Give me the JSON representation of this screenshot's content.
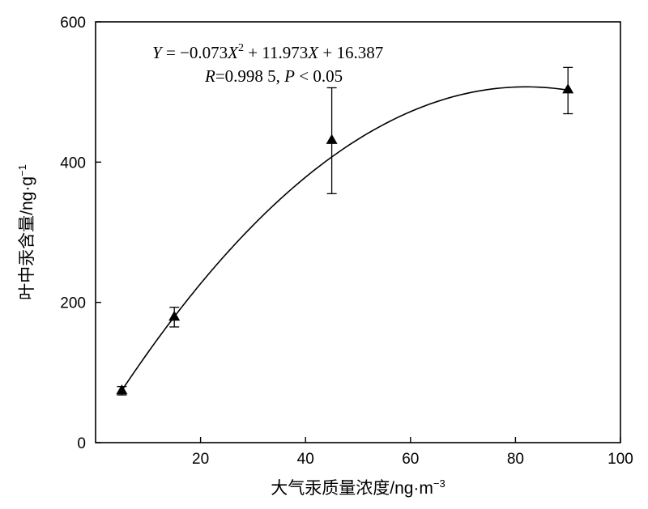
{
  "chart_data": {
    "type": "scatter",
    "xlabel": "大气汞质量浓度/ng·m",
    "xlabel_sup": "−3",
    "ylabel": "叶中汞含量/ng·g",
    "ylabel_sup": "−1",
    "xlim": [
      0,
      100
    ],
    "ylim": [
      0,
      600
    ],
    "xticks": [
      "20",
      "40",
      "60",
      "80",
      "100"
    ],
    "yticks": [
      "0",
      "200",
      "400",
      "600"
    ],
    "grid": false,
    "legend": "none",
    "points": [
      {
        "x": 5,
        "y": 75,
        "err_low": 68,
        "err_high": 80
      },
      {
        "x": 15,
        "y": 180,
        "err_low": 165,
        "err_high": 193
      },
      {
        "x": 45,
        "y": 432,
        "err_low": 355,
        "err_high": 506
      },
      {
        "x": 90,
        "y": 504,
        "err_low": 469,
        "err_high": 535
      }
    ],
    "fit": {
      "a": -0.073,
      "b": 11.973,
      "c": 16.387,
      "x_from": 5,
      "x_to": 90
    },
    "annotation": {
      "eq_Y": "Y",
      "eq_mid": " = −0.073",
      "eq_X": "X",
      "eq_sup": "2",
      "eq_mid2": " + 11.973",
      "eq_X2": "X",
      "eq_tail": " + 16.387",
      "r_R": "R",
      "r_mid": "=0.998 5, ",
      "r_P": "P",
      "r_tail": " < 0.05"
    },
    "colors": {
      "ink": "#000000"
    }
  }
}
